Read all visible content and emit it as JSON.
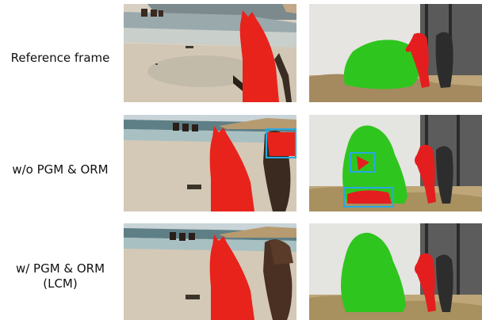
{
  "rows": [
    {
      "label_line1": "Reference frame",
      "label_line2": ""
    },
    {
      "label_line1": "w/o PGM & ORM",
      "label_line2": ""
    },
    {
      "label_line1": "w/ PGM & ORM",
      "label_line2": "(LCM)"
    }
  ],
  "colors": {
    "horse_mask": "#e8231c",
    "gorilla_mask": "#2fc51f",
    "figure_mask": "#e41e1e",
    "highlight_box": "#29a9e1"
  }
}
